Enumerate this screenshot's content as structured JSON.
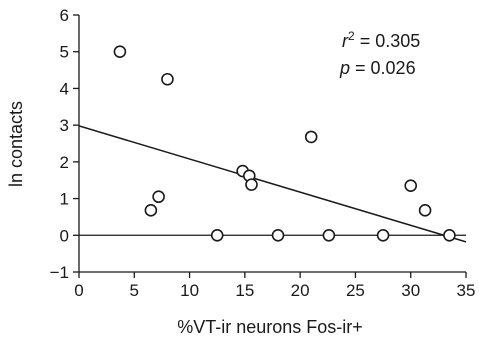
{
  "chart_data": {
    "type": "scatter",
    "xlabel": "%VT-ir neurons Fos-ir+",
    "ylabel": "ln contacts",
    "xlim": [
      0,
      35
    ],
    "ylim": [
      -1,
      6
    ],
    "xticks": [
      0,
      5,
      10,
      15,
      20,
      25,
      30,
      35
    ],
    "yticks": [
      -1,
      0,
      1,
      2,
      3,
      4,
      5,
      6
    ],
    "points": [
      {
        "x": 3.7,
        "y": 5.0
      },
      {
        "x": 6.5,
        "y": 0.68
      },
      {
        "x": 7.2,
        "y": 1.05
      },
      {
        "x": 8.0,
        "y": 4.25
      },
      {
        "x": 12.5,
        "y": 0.0
      },
      {
        "x": 14.8,
        "y": 1.75
      },
      {
        "x": 15.4,
        "y": 1.62
      },
      {
        "x": 15.6,
        "y": 1.38
      },
      {
        "x": 18.0,
        "y": 0.0
      },
      {
        "x": 21.0,
        "y": 2.68
      },
      {
        "x": 22.6,
        "y": 0.0
      },
      {
        "x": 27.5,
        "y": 0.0
      },
      {
        "x": 30.0,
        "y": 1.35
      },
      {
        "x": 31.3,
        "y": 0.68
      },
      {
        "x": 33.5,
        "y": 0.0
      }
    ],
    "regression_line": {
      "x": [
        0,
        35
      ],
      "y": [
        2.98,
        -0.18
      ]
    },
    "zero_line": 0,
    "annotations": {
      "r2_symbol": "r",
      "r2_exponent": "2",
      "r2_value": " = 0.305",
      "p_symbol": "p",
      "p_value": " = 0.026"
    },
    "grid": false,
    "legend": "none"
  }
}
